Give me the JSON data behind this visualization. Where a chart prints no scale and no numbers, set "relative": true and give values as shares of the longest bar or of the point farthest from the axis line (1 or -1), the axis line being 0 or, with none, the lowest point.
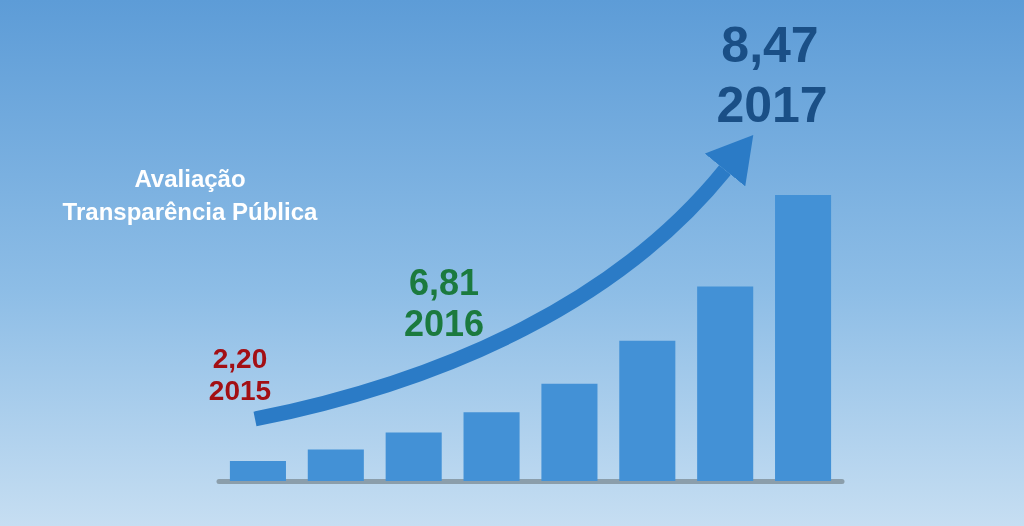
{
  "chart_data": {
    "type": "bar",
    "title": "Avaliação\nTransparência Pública",
    "categories": [
      null,
      null,
      null,
      null,
      null,
      null,
      null,
      null
    ],
    "values": [
      0.07,
      0.11,
      0.17,
      0.24,
      0.34,
      0.49,
      0.68,
      1
    ],
    "color": "#4391d6",
    "relative": true,
    "annotations": [
      "2,20",
      "2015",
      "6,81",
      "2016",
      "8,47",
      "2017"
    ]
  }
}
